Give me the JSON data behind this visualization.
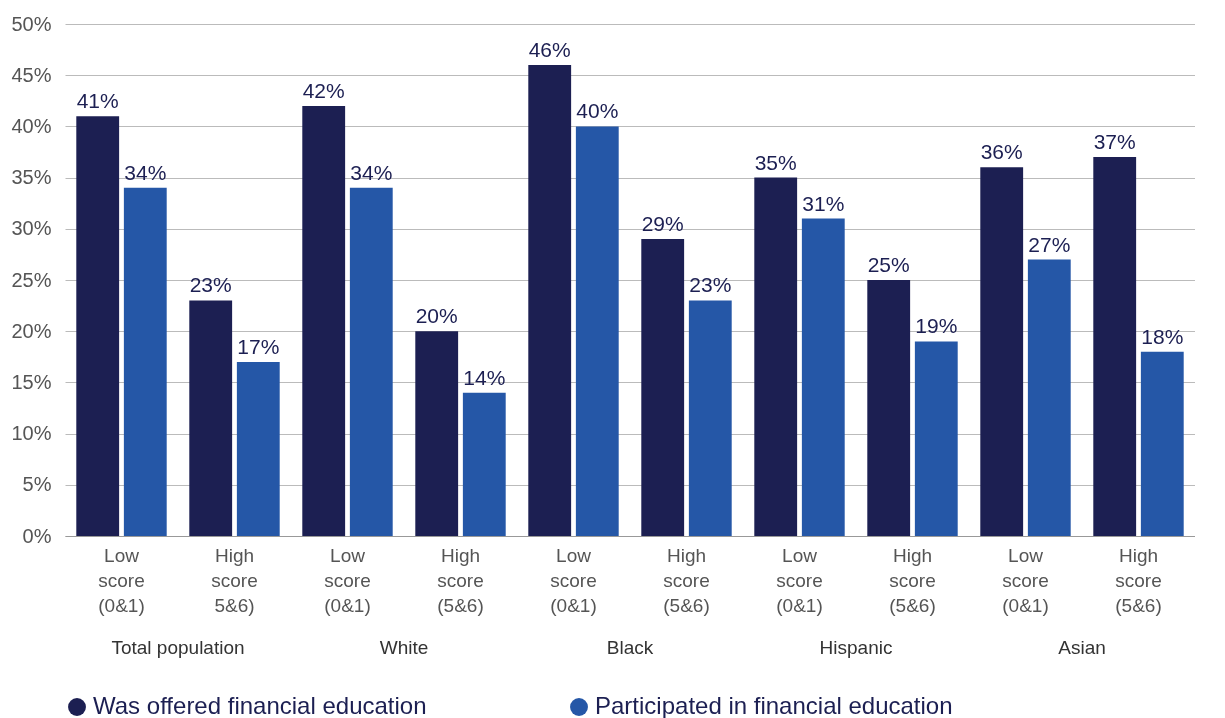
{
  "chart_data": {
    "type": "bar",
    "categories": [
      "Low score (0&1)",
      "High score 5&6)",
      "Low score (0&1)",
      "High score (5&6)",
      "Low score (0&1)",
      "High score (5&6)",
      "Low score (0&1)",
      "High score (5&6)",
      "Low score (0&1)",
      "High score (5&6)"
    ],
    "series": [
      {
        "name": "Was offered financial education",
        "color": "#1c1f52",
        "values": [
          41,
          23,
          42,
          20,
          46,
          29,
          35,
          25,
          36,
          37
        ],
        "value_labels": [
          "41%",
          "23%",
          "42%",
          "20%",
          "46%",
          "29%",
          "35%",
          "25%",
          "36%",
          "37%"
        ]
      },
      {
        "name": "Participated in financial education",
        "color": "#2557a7",
        "values": [
          34,
          17,
          34,
          14,
          40,
          23,
          31,
          19,
          27,
          18
        ],
        "value_labels": [
          "34%",
          "17%",
          "34%",
          "14%",
          "40%",
          "23%",
          "31%",
          "19%",
          "27%",
          "18%"
        ]
      }
    ],
    "annotations": [
      "Total population",
      "White",
      "Black",
      "Hispanic",
      "Asian"
    ],
    "ylim": [
      0,
      50
    ],
    "yticks": [
      {
        "value": 0,
        "label": "0%"
      },
      {
        "value": 5,
        "label": "5%"
      },
      {
        "value": 10,
        "label": "10%"
      },
      {
        "value": 15,
        "label": "15%"
      },
      {
        "value": 20,
        "label": "20%"
      },
      {
        "value": 25,
        "label": "25%"
      },
      {
        "value": 30,
        "label": "30%"
      },
      {
        "value": 35,
        "label": "35%"
      },
      {
        "value": 40,
        "label": "40%"
      },
      {
        "value": 45,
        "label": "45%"
      },
      {
        "value": 50,
        "label": "50%"
      }
    ],
    "grid": "y",
    "legend": "bottom"
  }
}
